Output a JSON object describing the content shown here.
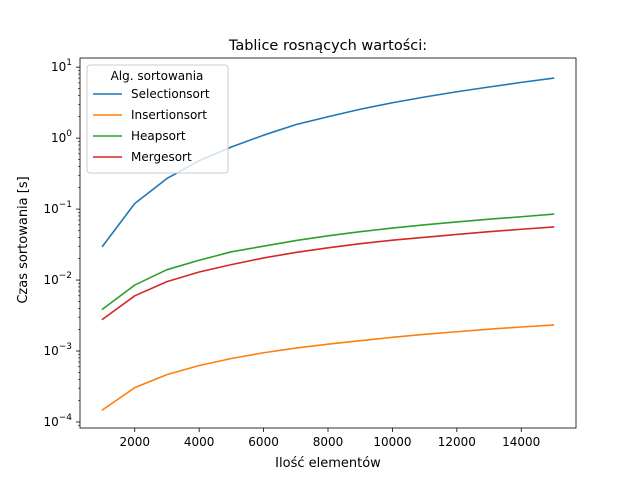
{
  "chart_data": {
    "type": "line",
    "title": "Tablice rosnących wartości:",
    "xlabel": "Ilość elementów",
    "ylabel": "Czas sortowania [s]",
    "yscale": "log",
    "xlim": [
      300,
      15700
    ],
    "ylim": [
      8.23e-05,
      13.46
    ],
    "grid": false,
    "x_ticks": [
      2000,
      4000,
      6000,
      8000,
      10000,
      12000,
      14000
    ],
    "y_ticks": [
      {
        "value": 0.0001,
        "base": "10",
        "exp": "−4"
      },
      {
        "value": 0.001,
        "base": "10",
        "exp": "−3"
      },
      {
        "value": 0.01,
        "base": "10",
        "exp": "−2"
      },
      {
        "value": 0.1,
        "base": "10",
        "exp": "−1"
      },
      {
        "value": 1,
        "base": "10",
        "exp": "0"
      },
      {
        "value": 10,
        "base": "10",
        "exp": "1"
      }
    ],
    "legend": {
      "title": "Alg. sortowania",
      "placement": "top-left"
    },
    "x": [
      1000,
      2000,
      3000,
      4000,
      5000,
      6000,
      7000,
      8000,
      9000,
      10000,
      11000,
      12000,
      13000,
      14000,
      15000
    ],
    "series": [
      {
        "name": "Selectionsort",
        "color": "#1f77b4",
        "values": [
          0.03,
          0.12,
          0.27,
          0.48,
          0.75,
          1.1,
          1.55,
          2.0,
          2.55,
          3.15,
          3.8,
          4.5,
          5.25,
          6.1,
          7.0
        ]
      },
      {
        "name": "Insertionsort",
        "color": "#ff7f0e",
        "values": [
          0.000148,
          0.000305,
          0.000465,
          0.000625,
          0.000785,
          0.000945,
          0.0011,
          0.00125,
          0.0014,
          0.00156,
          0.00172,
          0.00187,
          0.00203,
          0.00218,
          0.00233
        ]
      },
      {
        "name": "Heapsort",
        "color": "#2ca02c",
        "values": [
          0.0039,
          0.0085,
          0.014,
          0.019,
          0.025,
          0.03,
          0.036,
          0.042,
          0.048,
          0.054,
          0.06,
          0.066,
          0.072,
          0.078,
          0.085
        ]
      },
      {
        "name": "Mergesort",
        "color": "#d62728",
        "values": [
          0.0028,
          0.006,
          0.0095,
          0.013,
          0.0165,
          0.0205,
          0.0245,
          0.0285,
          0.0325,
          0.0365,
          0.04,
          0.044,
          0.048,
          0.052,
          0.056
        ]
      }
    ]
  }
}
